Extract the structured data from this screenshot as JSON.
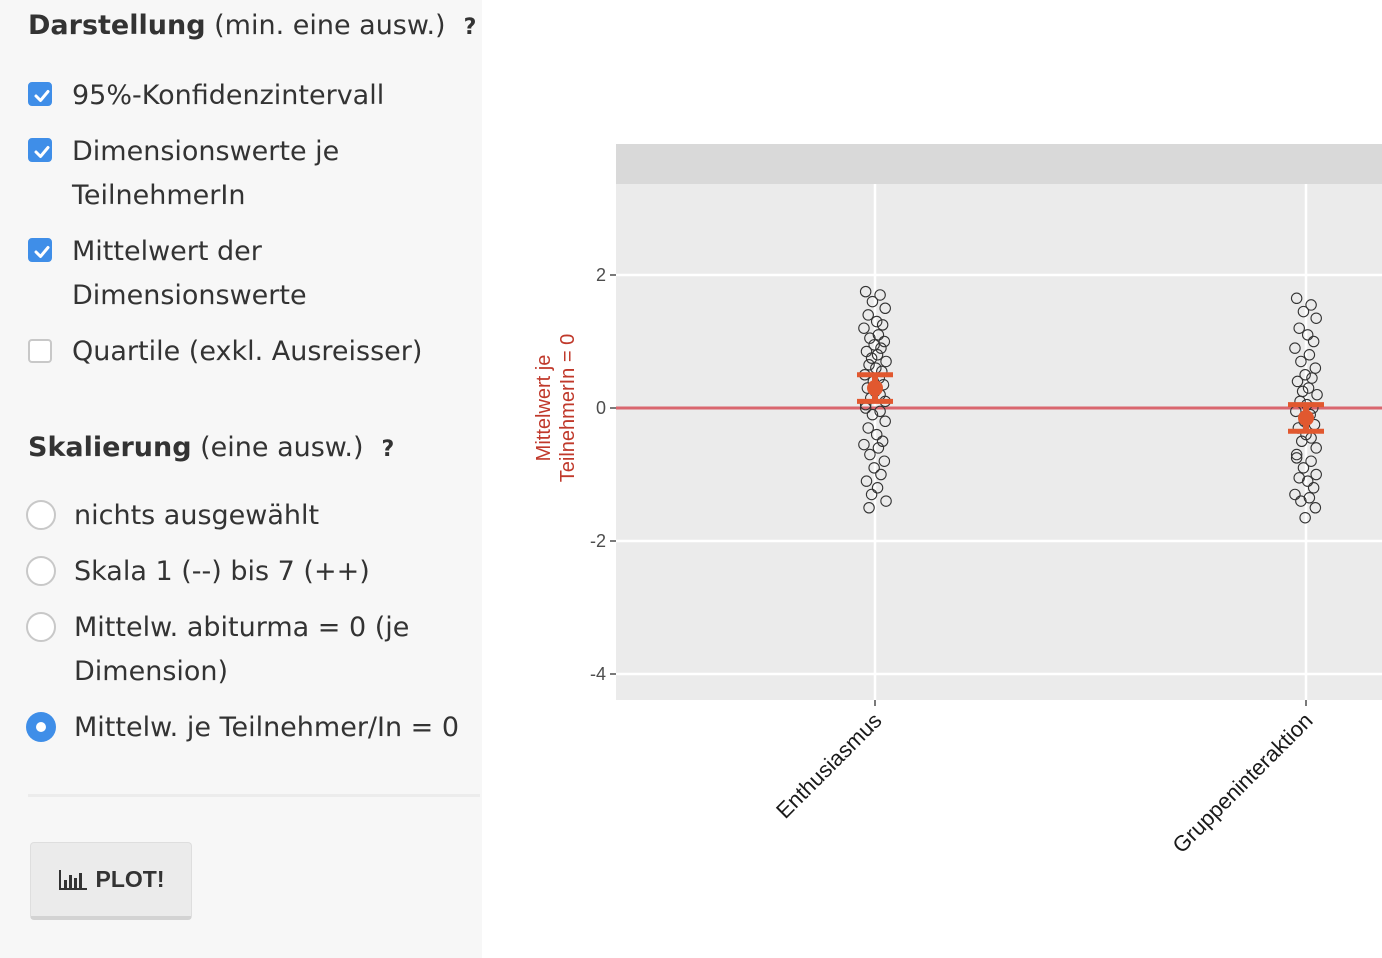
{
  "darstellung": {
    "title_bold": "Darstellung",
    "title_rest": " (min. eine ausw.)",
    "help": "?",
    "options": [
      {
        "label_lines": [
          "95%-Konfidenzintervall"
        ],
        "checked": true
      },
      {
        "label_lines": [
          "Dimensionswerte je",
          "TeilnehmerIn"
        ],
        "checked": true
      },
      {
        "label_lines": [
          "Mittelwert der",
          "Dimensionswerte"
        ],
        "checked": true
      },
      {
        "label_lines": [
          "Quartile (exkl. Ausreisser)"
        ],
        "checked": false
      }
    ]
  },
  "skalierung": {
    "title_bold": "Skalierung",
    "title_rest": " (eine ausw.)",
    "help": "?",
    "options": [
      {
        "label_lines": [
          "nichts ausgewählt"
        ],
        "selected": false
      },
      {
        "label_lines": [
          "Skala 1 (--) bis 7 (++)"
        ],
        "selected": false
      },
      {
        "label_lines": [
          "Mittelw. abiturma = 0 (je",
          "Dimension)"
        ],
        "selected": false
      },
      {
        "label_lines": [
          "Mittelw. je Teilnehmer/In = 0"
        ],
        "selected": true
      }
    ]
  },
  "plot_button": {
    "label": "PLOT!",
    "icon": "bar-chart-icon"
  },
  "colors": {
    "accent": "#3f8ee8",
    "mean_marker": "#e1582f",
    "reference_line": "#d9666e",
    "y_axis_title": "#c0392b",
    "panel_bg": "#ebebeb",
    "strip_bg": "#d9d9d9"
  },
  "chart_data": {
    "type": "scatter",
    "categories": [
      "Enthusiasmus",
      "Gruppeninteraktion"
    ],
    "ylabel": "Mittelwert je TeilnehmerIn = 0",
    "ylabel_lines": [
      "Mittelwert je",
      "TeilnehmerIn = 0"
    ],
    "ylim": [
      -4.2,
      3.0
    ],
    "yticks": [
      2,
      0,
      -2,
      -4
    ],
    "ytick_labels": [
      "2",
      "0",
      "-2",
      "-4"
    ],
    "reference_line_y": 0,
    "grid": true,
    "facet_strip": true,
    "series": [
      {
        "category": "Enthusiasmus",
        "mean": 0.3,
        "ci": [
          0.1,
          0.5
        ],
        "points": [
          1.75,
          1.7,
          1.6,
          1.5,
          1.4,
          1.3,
          1.25,
          1.2,
          1.1,
          1.05,
          1.0,
          0.95,
          0.9,
          0.85,
          0.8,
          0.75,
          0.7,
          0.65,
          0.6,
          0.55,
          0.5,
          0.45,
          0.4,
          0.35,
          0.3,
          0.25,
          0.2,
          0.15,
          0.1,
          0.05,
          0.0,
          -0.05,
          -0.1,
          -0.2,
          -0.3,
          -0.4,
          -0.5,
          -0.55,
          -0.6,
          -0.7,
          -0.8,
          -0.9,
          -1.0,
          -1.1,
          -1.2,
          -1.3,
          -1.4,
          -1.5
        ]
      },
      {
        "category": "Gruppeninteraktion",
        "mean": -0.15,
        "ci": [
          -0.35,
          0.05
        ],
        "points": [
          1.65,
          1.55,
          1.45,
          1.35,
          1.2,
          1.1,
          1.0,
          0.9,
          0.8,
          0.7,
          0.6,
          0.5,
          0.45,
          0.4,
          0.3,
          0.25,
          0.2,
          0.1,
          0.05,
          0.0,
          -0.05,
          -0.1,
          -0.2,
          -0.25,
          -0.3,
          -0.4,
          -0.45,
          -0.5,
          -0.6,
          -0.7,
          -0.75,
          -0.8,
          -0.9,
          -1.0,
          -1.05,
          -1.1,
          -1.2,
          -1.3,
          -1.35,
          -1.4,
          -1.5,
          -1.65
        ]
      }
    ]
  }
}
